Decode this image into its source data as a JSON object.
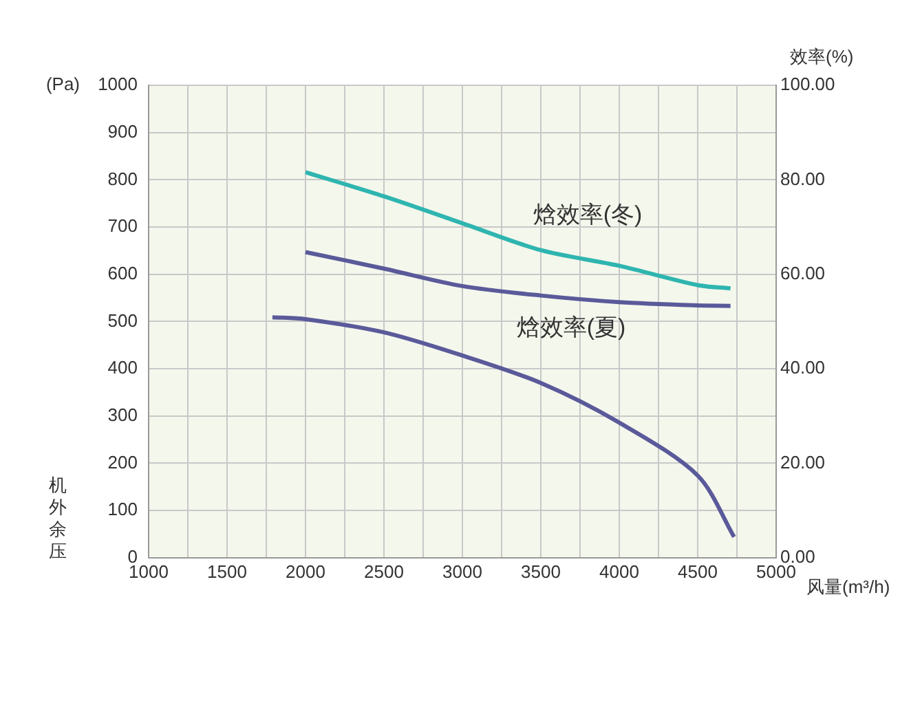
{
  "chart_data": {
    "type": "line",
    "xlabel": "风量(m³/h)",
    "ylabel": "机外余压",
    "y2label": "效率(%)",
    "annotations": [
      "(Pa)"
    ],
    "xlim": [
      1000,
      5000
    ],
    "xticks": [
      1000,
      {
        "value": 1250,
        "label": null
      },
      1500,
      {
        "value": 1750,
        "label": null
      },
      2000,
      {
        "value": 2250,
        "label": null
      },
      2500,
      {
        "value": 2750,
        "label": null
      },
      3000,
      {
        "value": 3250,
        "label": null
      },
      3500,
      {
        "value": 3750,
        "label": null
      },
      4000,
      {
        "value": 4250,
        "label": null
      },
      4500,
      {
        "value": 4750,
        "label": null
      },
      5000
    ],
    "ylim": [
      0,
      1000
    ],
    "yticks": [
      0,
      100,
      200,
      300,
      400,
      500,
      600,
      700,
      800,
      900,
      1000
    ],
    "y2lim": [
      0,
      100
    ],
    "y2ticks": [
      {
        "value": 0,
        "label": "0.00"
      },
      {
        "value": 20,
        "label": "20.00"
      },
      {
        "value": 40,
        "label": "40.00"
      },
      {
        "value": 60,
        "label": "60.00"
      },
      {
        "value": 80,
        "label": "80.00"
      },
      {
        "value": 100,
        "label": "100.00"
      }
    ],
    "grid": true,
    "legend": false,
    "marker": "none",
    "line_style": "solid",
    "series": [
      {
        "color": "#5a5a9a",
        "x": [
          1789,
          2000,
          2500,
          3000,
          3500,
          4000,
          4500,
          4732
        ],
        "values": [
          509,
          505,
          477,
          428,
          370,
          286,
          174,
          44
        ]
      },
      {
        "name": "焓效率(冬)",
        "axis": "y2",
        "color": "#2fb5b0",
        "x": [
          2000,
          2500,
          3000,
          3500,
          4000,
          4500,
          4709
        ],
        "values": [
          81.6,
          76.5,
          70.8,
          65.1,
          61.8,
          57.7,
          57.0
        ]
      },
      {
        "name": "焓效率(夏)",
        "axis": "y2",
        "color": "#5a5a9a",
        "x": [
          2000,
          2500,
          3000,
          3500,
          4000,
          4500,
          4709
        ],
        "values": [
          64.7,
          61.2,
          57.5,
          55.5,
          54.1,
          53.4,
          53.3
        ]
      }
    ]
  }
}
